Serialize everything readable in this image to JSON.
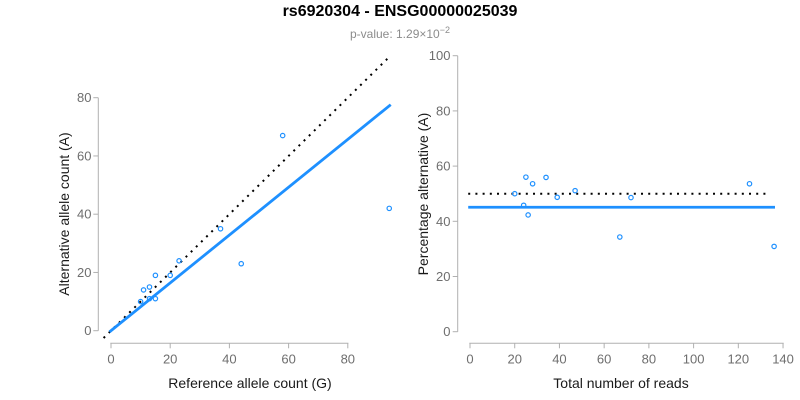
{
  "header": {
    "title": "rs6920304 - ENSG00000025039",
    "subtitle": {
      "text": "p-value: 1.29×10",
      "exp": "−2"
    }
  },
  "colors": {
    "accent_blue": "#1e90ff",
    "dotted_black": "#000000",
    "axis_line": "#b0b0b0",
    "tick_label": "#6e6e6e",
    "axis_title": "#1a1a1a",
    "title": "#000000",
    "subtitle": "#8c8c8c"
  },
  "chart_data": [
    {
      "type": "scatter",
      "title": "",
      "xlabel": "Reference allele count (G)",
      "ylabel": "Alternative allele count (A)",
      "xticks": [
        0,
        20,
        40,
        60,
        80
      ],
      "yticks": [
        0,
        20,
        40,
        60,
        80
      ],
      "xlim": [
        0,
        94.5
      ],
      "ylim": [
        0,
        94.5
      ],
      "grid": false,
      "legend": "none",
      "points": [
        [
          10,
          10
        ],
        [
          13,
          11
        ],
        [
          15,
          11
        ],
        [
          11,
          14
        ],
        [
          13,
          15
        ],
        [
          15,
          19
        ],
        [
          20,
          19
        ],
        [
          23,
          24
        ],
        [
          37,
          35
        ],
        [
          44,
          23
        ],
        [
          58,
          67
        ],
        [
          94,
          42
        ]
      ],
      "lines": [
        {
          "name": "identity-line",
          "style": "dotted",
          "color": "black",
          "x1": -2.5,
          "y1": -2.5,
          "x2": 93.5,
          "y2": 93.5
        },
        {
          "name": "fit-line",
          "style": "solid",
          "color": "blue",
          "x1": -0.5,
          "y1": -0.41,
          "x2": 94.5,
          "y2": 77.6
        }
      ]
    },
    {
      "type": "scatter",
      "title": "",
      "xlabel": "Total number of reads",
      "ylabel": "Percentage alternative (A)",
      "xticks": [
        0,
        20,
        40,
        60,
        80,
        100,
        120,
        140
      ],
      "yticks": [
        0,
        20,
        40,
        60,
        80,
        100
      ],
      "xlim": [
        0,
        140
      ],
      "ylim": [
        0,
        100
      ],
      "grid": false,
      "legend": "none",
      "points": [
        [
          20,
          50.0
        ],
        [
          24,
          45.8
        ],
        [
          26,
          42.3
        ],
        [
          25,
          56.0
        ],
        [
          28,
          53.6
        ],
        [
          34,
          55.9
        ],
        [
          39,
          48.7
        ],
        [
          47,
          51.1
        ],
        [
          72,
          48.6
        ],
        [
          67,
          34.3
        ],
        [
          125,
          53.6
        ],
        [
          136,
          30.9
        ]
      ],
      "lines": [
        {
          "name": "expected-50pct-line",
          "style": "dotted",
          "color": "black",
          "x1": -0.8,
          "y1": 50,
          "x2": 133.5,
          "y2": 50
        },
        {
          "name": "fit-line",
          "style": "solid",
          "color": "blue",
          "x1": -0.8,
          "y1": 45.1,
          "x2": 136.4,
          "y2": 45.1
        }
      ]
    }
  ]
}
